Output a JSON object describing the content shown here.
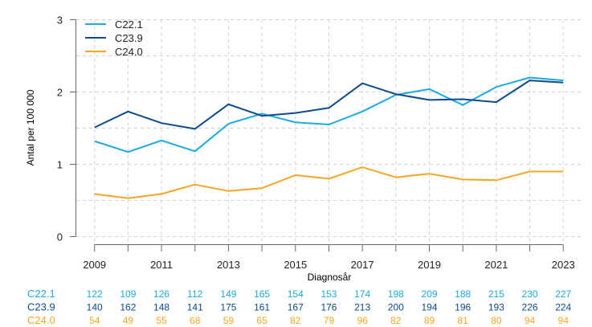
{
  "chart_data": {
    "type": "line",
    "title": "",
    "xlabel": "Diagnosår",
    "ylabel": "Antal per 100 000",
    "x": [
      2009,
      2010,
      2011,
      2012,
      2013,
      2014,
      2015,
      2016,
      2017,
      2018,
      2019,
      2020,
      2021,
      2022,
      2023
    ],
    "x_tick_labels": [
      "2009",
      "2011",
      "2013",
      "2015",
      "2017",
      "2019",
      "2021",
      "2023"
    ],
    "x_tick_label_years": [
      2009,
      2011,
      2013,
      2015,
      2017,
      2019,
      2021,
      2023
    ],
    "ylim": [
      0,
      3
    ],
    "y_ticks": [
      0,
      1,
      2,
      3
    ],
    "y_tick_labels": [
      "0",
      "1",
      "2",
      "3"
    ],
    "grid": true,
    "grid_step": 0.5,
    "legend_position": "top-left",
    "series": [
      {
        "name": "C22.1",
        "color": "#1aa9e3",
        "values": [
          1.32,
          1.17,
          1.33,
          1.18,
          1.56,
          1.7,
          1.58,
          1.55,
          1.73,
          1.96,
          2.04,
          1.82,
          2.07,
          2.2,
          2.16
        ],
        "counts": [
          "122",
          "109",
          "126",
          "112",
          "149",
          "165",
          "154",
          "153",
          "174",
          "198",
          "209",
          "188",
          "215",
          "230",
          "227"
        ]
      },
      {
        "name": "C23.9",
        "color": "#0b4a8b",
        "values": [
          1.51,
          1.73,
          1.57,
          1.49,
          1.83,
          1.67,
          1.71,
          1.78,
          2.12,
          1.97,
          1.89,
          1.9,
          1.86,
          2.16,
          2.13
        ],
        "counts": [
          "140",
          "162",
          "148",
          "141",
          "175",
          "161",
          "167",
          "176",
          "213",
          "200",
          "194",
          "196",
          "193",
          "226",
          "224"
        ]
      },
      {
        "name": "C24.0",
        "color": "#f6a623",
        "values": [
          0.59,
          0.53,
          0.59,
          0.72,
          0.63,
          0.67,
          0.85,
          0.8,
          0.96,
          0.82,
          0.87,
          0.79,
          0.78,
          0.9,
          0.9
        ],
        "counts": [
          "54",
          "49",
          "55",
          "68",
          "59",
          "65",
          "82",
          "79",
          "96",
          "82",
          "89",
          "81",
          "80",
          "94",
          "94"
        ]
      }
    ]
  }
}
